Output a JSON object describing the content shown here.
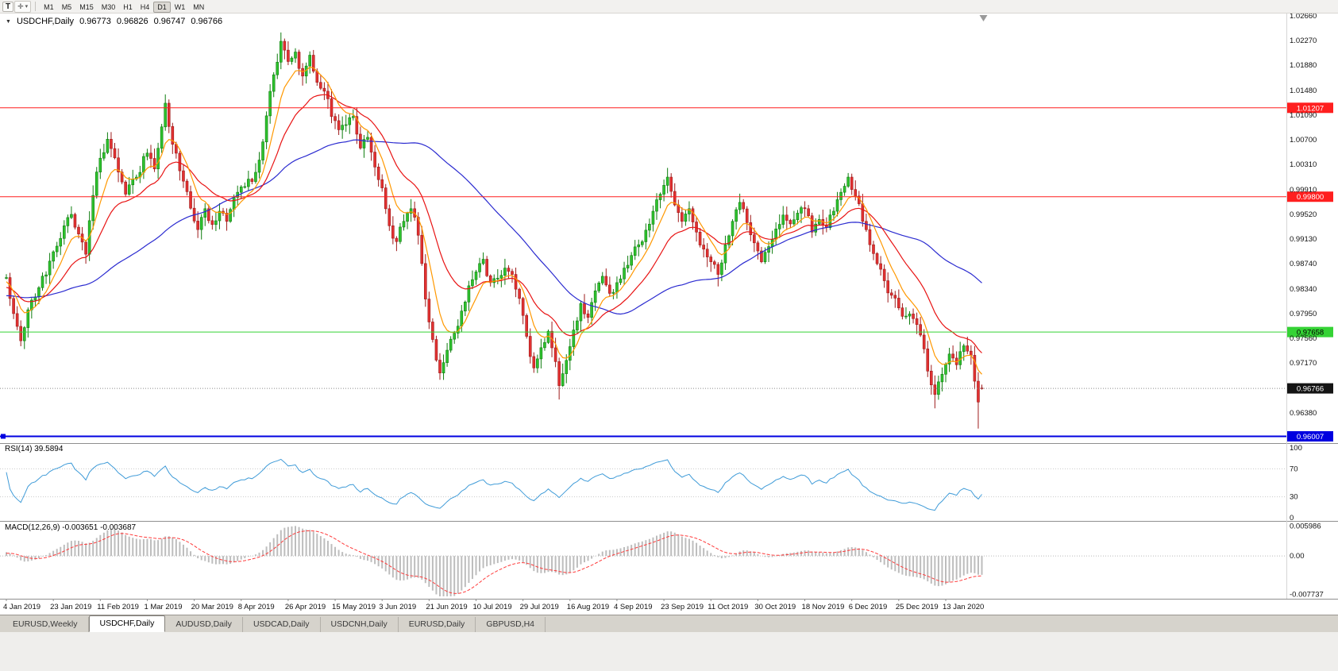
{
  "toolbar": {
    "tool_button": "T",
    "cursor_glyph": "✛",
    "dropdown_glyph": "▾",
    "timeframes": [
      "M1",
      "M5",
      "M15",
      "M30",
      "H1",
      "H4",
      "D1",
      "W1",
      "MN"
    ],
    "active_timeframe": "D1"
  },
  "chart": {
    "collapse_arrow": "▼",
    "symbol_period": "USDCHF,Daily",
    "ohlc": {
      "open": "0.96773",
      "high": "0.96826",
      "low": "0.96747",
      "close": "0.96766"
    },
    "price_axis": [
      "1.02660",
      "1.02270",
      "1.01880",
      "1.01480",
      "1.01090",
      "1.00700",
      "1.00310",
      "0.99910",
      "0.99520",
      "0.99130",
      "0.98740",
      "0.98340",
      "0.97950",
      "0.97560",
      "0.97170",
      "0.96380"
    ],
    "hlines": [
      {
        "name": "resistance-line-upper",
        "price": 1.01207,
        "label": "1.01207",
        "color": "#ff1f1f",
        "text_color": "#ffffff",
        "width": 1
      },
      {
        "name": "resistance-line-lower",
        "price": 0.998,
        "label": "0.99800",
        "color": "#ff1f1f",
        "text_color": "#ffffff",
        "width": 1
      },
      {
        "name": "support-line-green",
        "price": 0.97658,
        "label": "0.97658",
        "color": "#35d335",
        "text_color": "#000000",
        "width": 1
      },
      {
        "name": "support-line-blue",
        "price": 0.96007,
        "label": "0.96007",
        "color": "#0000e0",
        "text_color": "#ffffff",
        "width": 2,
        "handle": true
      }
    ],
    "current_price": {
      "value": 0.96766,
      "label": "0.96766",
      "box_color": "#141414",
      "text_color": "#ffffff",
      "line_color": "#8a8a8a"
    },
    "colors": {
      "bull_fill": "#2ec22e",
      "bull_stroke": "#0f7d0f",
      "bear_fill": "#e23131",
      "bear_stroke": "#9e1b1b"
    },
    "ma": [
      {
        "name": "ma-slow-line",
        "type": "sma",
        "period": 55,
        "color": "#2b2bd0"
      },
      {
        "name": "ma-mid-line",
        "type": "ema",
        "period": 21,
        "color": "#e81313"
      },
      {
        "name": "ma-fast-line",
        "type": "ema",
        "period": 8,
        "color": "#ff9800"
      }
    ],
    "candles": {
      "count": 271,
      "anchors": [
        [
          -60,
          0.9858
        ],
        [
          -48,
          0.9795
        ],
        [
          -36,
          0.9842
        ],
        [
          -24,
          0.9801
        ],
        [
          -12,
          0.9835
        ],
        [
          0,
          0.9852
        ],
        [
          2,
          0.9795
        ],
        [
          4,
          0.9752
        ],
        [
          6,
          0.9801
        ],
        [
          9,
          0.9836
        ],
        [
          12,
          0.9878
        ],
        [
          15,
          0.9914
        ],
        [
          18,
          0.9952
        ],
        [
          20,
          0.9921
        ],
        [
          22,
          0.9889
        ],
        [
          24,
          0.9982
        ],
        [
          26,
          1.0041
        ],
        [
          28,
          1.0071
        ],
        [
          31,
          1.0019
        ],
        [
          33,
          0.9984
        ],
        [
          36,
          1.0011
        ],
        [
          39,
          1.0049
        ],
        [
          41,
          1.0024
        ],
        [
          44,
          1.0128
        ],
        [
          46,
          1.0063
        ],
        [
          48,
          1.0021
        ],
        [
          50,
          0.9988
        ],
        [
          53,
          0.9928
        ],
        [
          55,
          0.9961
        ],
        [
          57,
          0.9936
        ],
        [
          59,
          0.9957
        ],
        [
          61,
          0.9941
        ],
        [
          63,
          0.9979
        ],
        [
          66,
          0.9996
        ],
        [
          68,
          1.0004
        ],
        [
          70,
          1.0038
        ],
        [
          72,
          1.0108
        ],
        [
          74,
          1.0173
        ],
        [
          76,
          1.0226
        ],
        [
          78,
          1.0194
        ],
        [
          80,
          1.0209
        ],
        [
          82,
          1.0171
        ],
        [
          84,
          1.0204
        ],
        [
          86,
          1.0161
        ],
        [
          88,
          1.0147
        ],
        [
          90,
          1.0107
        ],
        [
          92,
          1.0086
        ],
        [
          94,
          1.0094
        ],
        [
          96,
          1.0107
        ],
        [
          98,
          1.0057
        ],
        [
          100,
          1.0074
        ],
        [
          102,
          1.0027
        ],
        [
          104,
          0.9994
        ],
        [
          106,
          0.9934
        ],
        [
          108,
          0.9909
        ],
        [
          110,
          0.9941
        ],
        [
          112,
          0.9961
        ],
        [
          114,
          0.9919
        ],
        [
          116,
          0.9818
        ],
        [
          118,
          0.9754
        ],
        [
          120,
          0.9701
        ],
        [
          122,
          0.9737
        ],
        [
          124,
          0.9764
        ],
        [
          126,
          0.9799
        ],
        [
          128,
          0.9839
        ],
        [
          130,
          0.9861
        ],
        [
          132,
          0.9881
        ],
        [
          134,
          0.9844
        ],
        [
          136,
          0.9851
        ],
        [
          138,
          0.9867
        ],
        [
          140,
          0.9857
        ],
        [
          142,
          0.9819
        ],
        [
          144,
          0.9759
        ],
        [
          146,
          0.9709
        ],
        [
          148,
          0.9741
        ],
        [
          150,
          0.9767
        ],
        [
          152,
          0.9719
        ],
        [
          153,
          0.9681
        ],
        [
          155,
          0.9721
        ],
        [
          157,
          0.9769
        ],
        [
          159,
          0.9811
        ],
        [
          161,
          0.9789
        ],
        [
          163,
          0.9831
        ],
        [
          165,
          0.9854
        ],
        [
          167,
          0.9827
        ],
        [
          169,
          0.9844
        ],
        [
          171,
          0.9867
        ],
        [
          173,
          0.9887
        ],
        [
          175,
          0.9904
        ],
        [
          177,
          0.9927
        ],
        [
          179,
          0.9957
        ],
        [
          181,
          0.9984
        ],
        [
          183,
          1.0011
        ],
        [
          185,
          0.9967
        ],
        [
          187,
          0.9941
        ],
        [
          189,
          0.9961
        ],
        [
          191,
          0.9924
        ],
        [
          193,
          0.9897
        ],
        [
          195,
          0.9877
        ],
        [
          197,
          0.9857
        ],
        [
          199,
          0.9904
        ],
        [
          201,
          0.9941
        ],
        [
          203,
          0.9971
        ],
        [
          205,
          0.9939
        ],
        [
          207,
          0.9907
        ],
        [
          209,
          0.9877
        ],
        [
          211,
          0.9901
        ],
        [
          213,
          0.9929
        ],
        [
          215,
          0.9951
        ],
        [
          217,
          0.9937
        ],
        [
          219,
          0.9954
        ],
        [
          221,
          0.9961
        ],
        [
          223,
          0.9924
        ],
        [
          225,
          0.9944
        ],
        [
          227,
          0.9931
        ],
        [
          229,
          0.9957
        ],
        [
          231,
          0.9987
        ],
        [
          233,
          1.0011
        ],
        [
          235,
          0.9981
        ],
        [
          237,
          0.9941
        ],
        [
          239,
          0.9904
        ],
        [
          241,
          0.9874
        ],
        [
          243,
          0.9847
        ],
        [
          245,
          0.9824
        ],
        [
          247,
          0.9804
        ],
        [
          249,
          0.9791
        ],
        [
          251,
          0.9787
        ],
        [
          253,
          0.9761
        ],
        [
          255,
          0.9704
        ],
        [
          257,
          0.9667
        ],
        [
          259,
          0.9699
        ],
        [
          261,
          0.9731
        ],
        [
          263,
          0.9714
        ],
        [
          265,
          0.9744
        ],
        [
          267,
          0.9729
        ],
        [
          268,
          0.9688
        ],
        [
          269,
          0.9655
        ],
        [
          270,
          0.96766
        ]
      ],
      "wicks": [
        {
          "d": 28,
          "high": 1.0082
        },
        {
          "d": 44,
          "high": 1.0142
        },
        {
          "d": 76,
          "high": 1.024
        },
        {
          "d": 120,
          "low": 0.9692
        },
        {
          "d": 153,
          "low": 0.9659
        },
        {
          "d": 197,
          "low": 0.9838
        },
        {
          "d": 257,
          "low": 0.9645
        },
        {
          "d": 269,
          "low": 0.9613
        }
      ]
    }
  },
  "rsi": {
    "label": "RSI(14) 39.5894",
    "period": 14,
    "axis": [
      "100",
      "70",
      "30",
      "0"
    ],
    "levels": [
      70,
      30
    ],
    "color": "#3f9bd8"
  },
  "macd": {
    "label": "MACD(12,26,9) -0.003651 -0.003687",
    "fast": 12,
    "slow": 26,
    "signal": 9,
    "axis": [
      {
        "v": 0.005986,
        "label": "0.005986"
      },
      {
        "v": 0,
        "label": "0.00"
      },
      {
        "v": -0.007737,
        "label": "-0.007737"
      }
    ],
    "hist_color": "#bdbdbd",
    "signal_color": "#ff3b3b"
  },
  "date_axis": {
    "step_days": 13,
    "labels": [
      "4 Jan 2019",
      "23 Jan 2019",
      "11 Feb 2019",
      "1 Mar 2019",
      "20 Mar 2019",
      "8 Apr 2019",
      "26 Apr 2019",
      "15 May 2019",
      "3 Jun 2019",
      "21 Jun 2019",
      "10 Jul 2019",
      "29 Jul 2019",
      "16 Aug 2019",
      "4 Sep 2019",
      "23 Sep 2019",
      "11 Oct 2019",
      "30 Oct 2019",
      "18 Nov 2019",
      "6 Dec 2019",
      "25 Dec 2019",
      "13 Jan 2020"
    ]
  },
  "tabs": {
    "items": [
      "EURUSD,Weekly",
      "USDCHF,Daily",
      "AUDUSD,Daily",
      "USDCAD,Daily",
      "USDCNH,Daily",
      "EURUSD,Daily",
      "GBPUSD,H4"
    ],
    "active": "USDCHF,Daily"
  }
}
